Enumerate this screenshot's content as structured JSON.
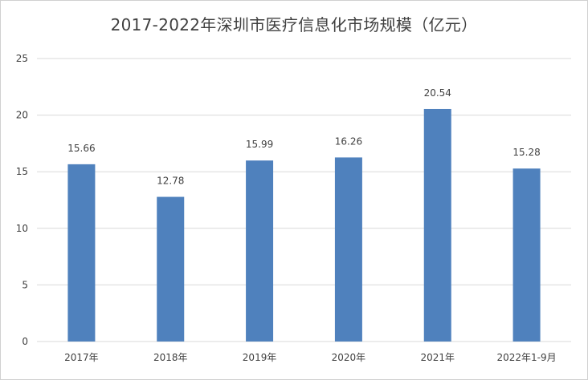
{
  "chart_data": {
    "type": "bar",
    "title": "2017-2022年深圳市医疗信息化市场规模（亿元）",
    "categories": [
      "2017年",
      "2018年",
      "2019年",
      "2020年",
      "2021年",
      "2022年1-9月"
    ],
    "values": [
      15.66,
      12.78,
      15.99,
      16.26,
      20.54,
      15.28
    ],
    "data_labels": [
      "15.66",
      "12.78",
      "15.99",
      "16.26",
      "20.54",
      "15.28"
    ],
    "yticks": [
      "0",
      "5",
      "10",
      "15",
      "20",
      "25"
    ],
    "ylim": [
      0,
      25
    ],
    "xlabel": "",
    "ylabel": "",
    "grid": true,
    "legend": "none",
    "bar_color": "#4F81BD",
    "grid_color": "#d9d9d9",
    "text_color": "#404040"
  }
}
